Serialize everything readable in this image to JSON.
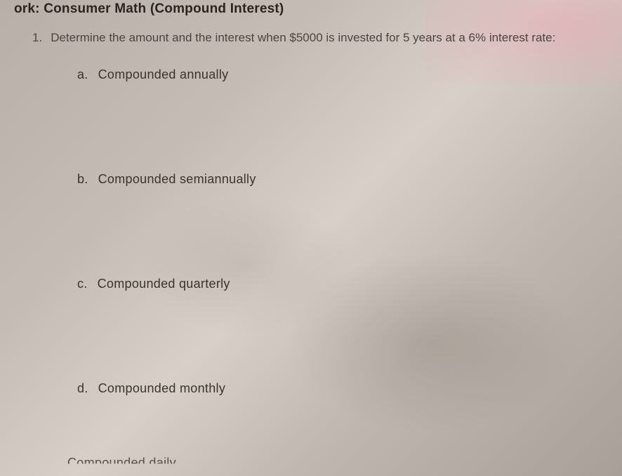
{
  "header": {
    "prefix": "ork: ",
    "title": "Consumer Math (Compound Interest)"
  },
  "question": {
    "number": "1.",
    "text": "Determine the amount and the interest when $5000 is invested for 5 years at a 6% interest rate:"
  },
  "options": {
    "a": {
      "letter": "a.",
      "text": "Compounded annually"
    },
    "b": {
      "letter": "b.",
      "text": "Compounded semiannually"
    },
    "c": {
      "letter": "c.",
      "text": "Compounded quarterly"
    },
    "d": {
      "letter": "d.",
      "text": "Compounded monthly"
    }
  },
  "bottom_cut": "Compounded daily"
}
